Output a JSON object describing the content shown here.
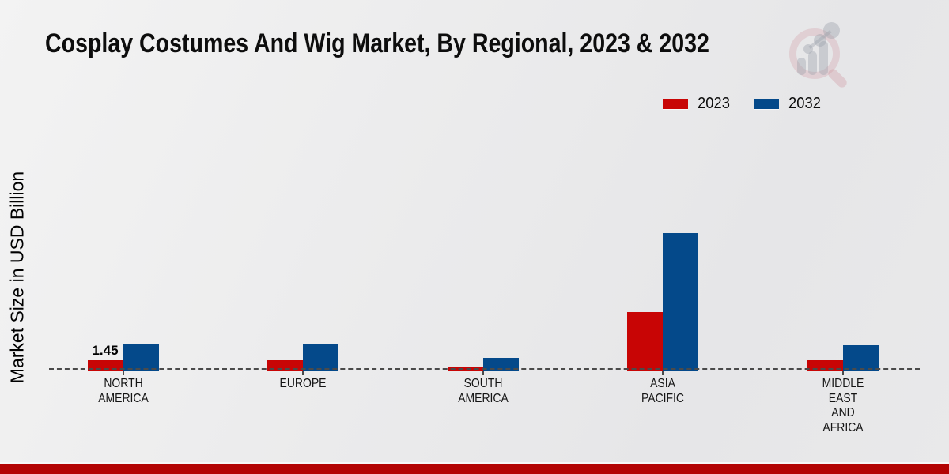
{
  "title": "Cosplay Costumes And Wig Market, By Regional, 2023 & 2032",
  "y_axis_label": "Market Size in USD Billion",
  "legend": {
    "items": [
      {
        "label": "2023",
        "color": "#c80505"
      },
      {
        "label": "2032",
        "color": "#04498a"
      }
    ],
    "position": "top-right"
  },
  "colors": {
    "series_2023": "#c80505",
    "series_2032": "#04498a",
    "baseline": "#4a4a4a",
    "bottom_strip": "#b30404",
    "background": "#ebebec"
  },
  "watermark": "magnifier-bar-chart-logo",
  "chart_data": {
    "type": "bar",
    "title": "Cosplay Costumes And Wig Market, By Regional, 2023 & 2032",
    "xlabel": "",
    "ylabel": "Market Size in USD Billion",
    "ylim": [
      0,
      20
    ],
    "grid": false,
    "legend_position": "top-right",
    "categories": [
      "North America",
      "Europe",
      "South America",
      "Asia Pacific",
      "Middle East and Africa"
    ],
    "category_labels": [
      "NORTH\nAMERICA",
      "EUROPE",
      "SOUTH\nAMERICA",
      "ASIA\nPACIFIC",
      "MIDDLE\nEAST\nAND\nAFRICA"
    ],
    "series": [
      {
        "name": "2023",
        "color": "#c80505",
        "values": [
          1.45,
          1.38,
          0.58,
          8.0,
          1.42
        ]
      },
      {
        "name": "2032",
        "color": "#04498a",
        "values": [
          3.7,
          3.65,
          1.75,
          18.9,
          3.45
        ]
      }
    ],
    "value_labels": [
      {
        "category": "North America",
        "series": "2023",
        "text": "1.45"
      }
    ]
  }
}
